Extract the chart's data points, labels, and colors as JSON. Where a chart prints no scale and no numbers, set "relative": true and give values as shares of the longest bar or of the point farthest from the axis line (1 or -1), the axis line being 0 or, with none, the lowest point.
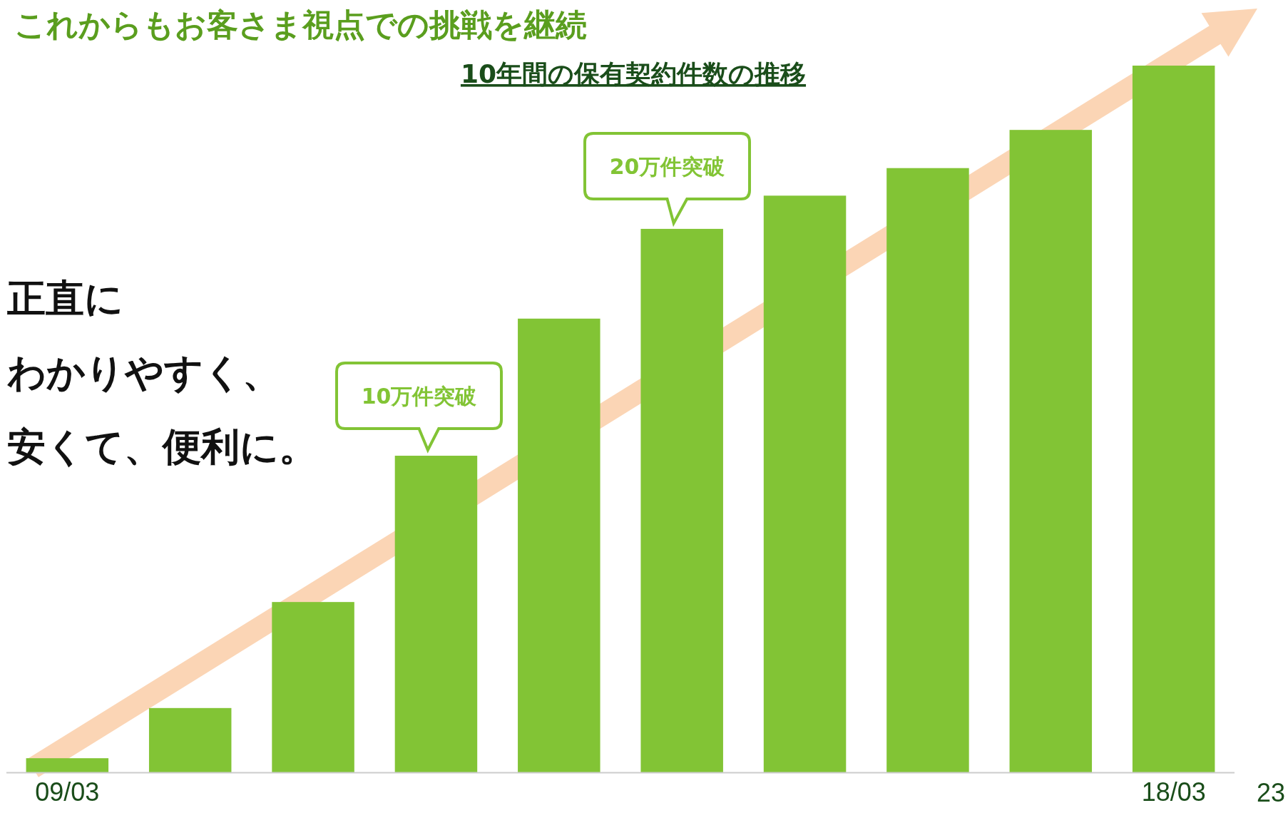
{
  "chart_data": {
    "type": "bar",
    "relative": true,
    "title": "これからもお客さま視点での挑戦を継続",
    "subtitle": "10年間の保有契約件数の推移",
    "categories": [
      "09/03",
      null,
      null,
      null,
      null,
      null,
      null,
      null,
      null,
      "18/03"
    ],
    "values": [
      0.02,
      0.091,
      0.241,
      0.448,
      0.642,
      0.769,
      0.816,
      0.855,
      0.909,
      1
    ],
    "color": "#82c435",
    "annotations": [
      "10万件突破",
      "20万件突破",
      "正直に",
      "わかりやすく、",
      "安くて、便利に。",
      "23"
    ]
  }
}
